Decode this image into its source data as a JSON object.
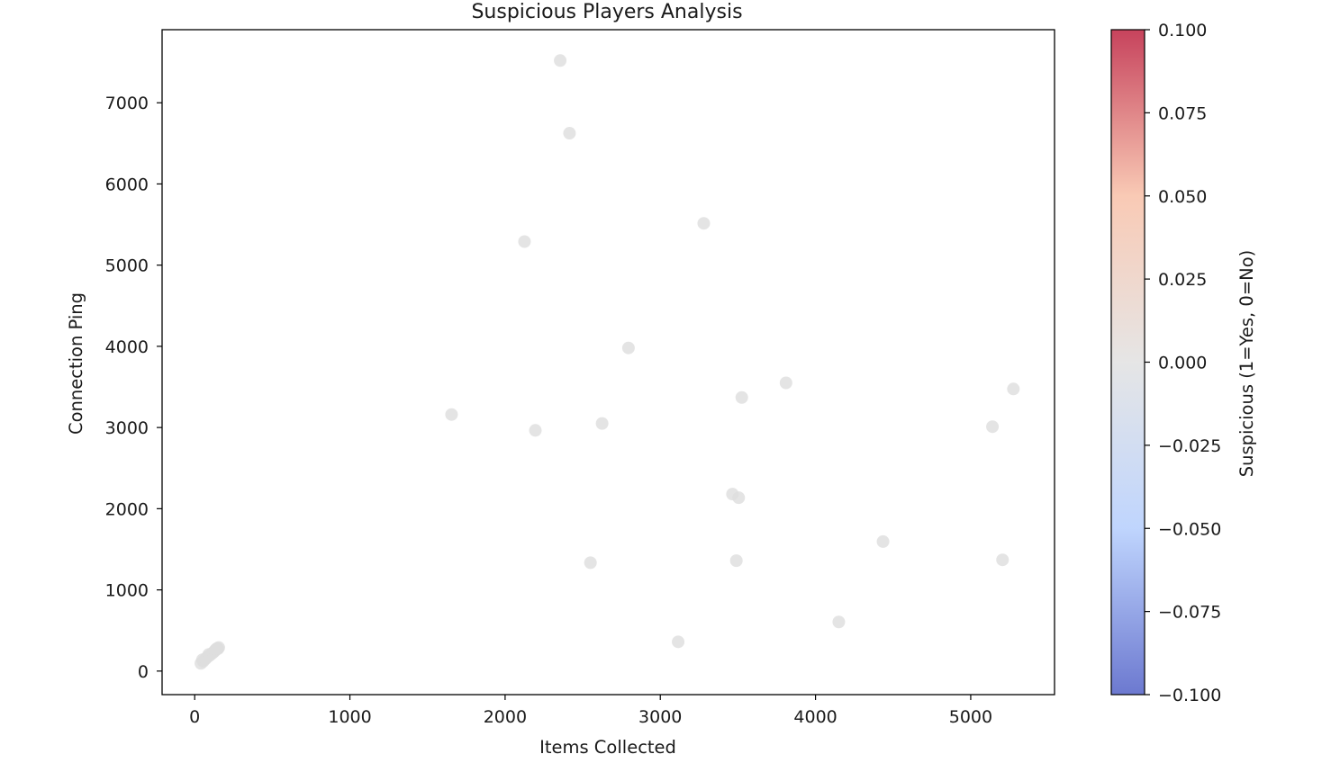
{
  "chart_data": {
    "type": "scatter",
    "title": "Suspicious Players Analysis",
    "xlabel": "Items Collected",
    "ylabel": "Connection Ping",
    "xlim": [
      -210,
      5540
    ],
    "ylim": [
      -290,
      7900
    ],
    "x_ticks": [
      0,
      1000,
      2000,
      3000,
      4000,
      5000
    ],
    "y_ticks": [
      0,
      1000,
      2000,
      3000,
      4000,
      5000,
      6000,
      7000
    ],
    "grid": false,
    "series": [
      {
        "color_value": 0,
        "color": "#dddddd",
        "points": [
          {
            "x": 2355,
            "y": 7520
          },
          {
            "x": 2415,
            "y": 6625
          },
          {
            "x": 3280,
            "y": 5515
          },
          {
            "x": 2125,
            "y": 5290
          },
          {
            "x": 2795,
            "y": 3980
          },
          {
            "x": 3810,
            "y": 3550
          },
          {
            "x": 5275,
            "y": 3475
          },
          {
            "x": 3525,
            "y": 3370
          },
          {
            "x": 1655,
            "y": 3160
          },
          {
            "x": 2625,
            "y": 3050
          },
          {
            "x": 2195,
            "y": 2965
          },
          {
            "x": 5140,
            "y": 3010
          },
          {
            "x": 3465,
            "y": 2180
          },
          {
            "x": 3505,
            "y": 2135
          },
          {
            "x": 4435,
            "y": 1595
          },
          {
            "x": 2550,
            "y": 1335
          },
          {
            "x": 3490,
            "y": 1360
          },
          {
            "x": 5205,
            "y": 1370
          },
          {
            "x": 4150,
            "y": 605
          },
          {
            "x": 3115,
            "y": 360
          },
          {
            "x": 40,
            "y": 95
          },
          {
            "x": 55,
            "y": 120
          },
          {
            "x": 50,
            "y": 140
          },
          {
            "x": 70,
            "y": 150
          },
          {
            "x": 80,
            "y": 170
          },
          {
            "x": 95,
            "y": 190
          },
          {
            "x": 90,
            "y": 205
          },
          {
            "x": 110,
            "y": 215
          },
          {
            "x": 120,
            "y": 230
          },
          {
            "x": 130,
            "y": 250
          },
          {
            "x": 135,
            "y": 265
          },
          {
            "x": 145,
            "y": 280
          },
          {
            "x": 150,
            "y": 275
          },
          {
            "x": 155,
            "y": 290
          }
        ]
      }
    ],
    "colorbar": {
      "label": "Suspicious (1=Yes, 0=No)",
      "colormap": "coolwarm",
      "range": [
        -0.1,
        0.1
      ],
      "ticks": [
        "0.100",
        "0.075",
        "0.050",
        "0.025",
        "0.000",
        "−0.025",
        "−0.050",
        "−0.075",
        "−0.100"
      ],
      "colors": [
        "#b40426",
        "#f7b89c",
        "#dddddd",
        "#aac7fd",
        "#3b4cc0"
      ]
    }
  }
}
